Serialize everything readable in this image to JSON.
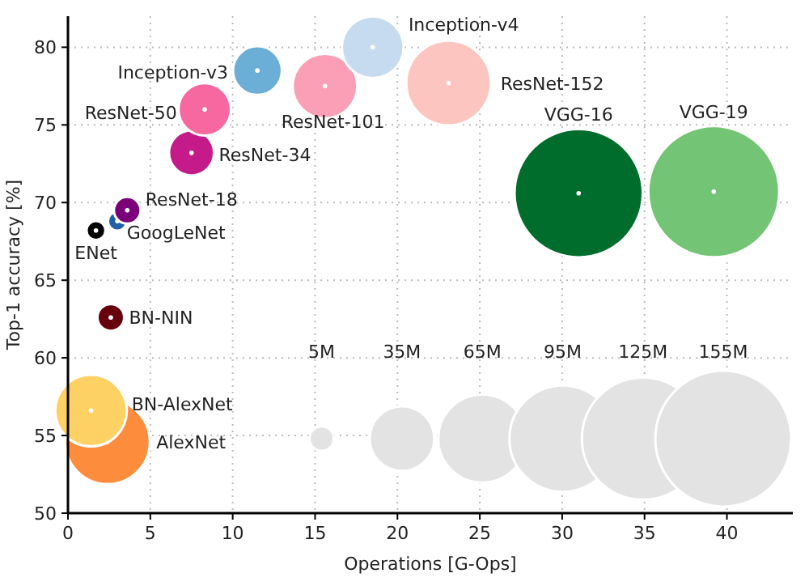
{
  "chart_data": {
    "type": "bubble",
    "xlabel": "Operations [G-Ops]",
    "ylabel": "Top-1 accuracy [%]",
    "xlim": [
      0,
      44
    ],
    "ylim": [
      50,
      82
    ],
    "xticks": [
      0,
      5,
      10,
      15,
      20,
      25,
      30,
      35,
      40
    ],
    "yticks": [
      50,
      55,
      60,
      65,
      70,
      75,
      80
    ],
    "grid": true,
    "size_legend": [
      {
        "value": 5,
        "label": "5M"
      },
      {
        "value": 35,
        "label": "35M"
      },
      {
        "value": 65,
        "label": "65M"
      },
      {
        "value": 95,
        "label": "95M"
      },
      {
        "value": 125,
        "label": "125M"
      },
      {
        "value": 155,
        "label": "155M"
      }
    ],
    "series": [
      {
        "name": "AlexNet",
        "color": "#fd8d3c",
        "x": [
          2.4
        ],
        "values": [
          54.6
        ],
        "sizes": [
          60
        ]
      },
      {
        "name": "BN-AlexNet",
        "color": "#fed165",
        "x": [
          1.4
        ],
        "values": [
          56.6
        ],
        "sizes": [
          43
        ]
      },
      {
        "name": "BN-NIN",
        "color": "#67000d",
        "x": [
          2.6
        ],
        "values": [
          62.6
        ],
        "sizes": [
          6
        ]
      },
      {
        "name": "ENet",
        "color": "#000000",
        "x": [
          1.7
        ],
        "values": [
          68.2
        ],
        "sizes": [
          3
        ]
      },
      {
        "name": "GoogLeNet",
        "color": "#1f5fa8",
        "x": [
          3.0
        ],
        "values": [
          68.8
        ],
        "sizes": [
          3
        ]
      },
      {
        "name": "ResNet-18",
        "color": "#7a0177",
        "x": [
          3.6
        ],
        "values": [
          69.5
        ],
        "sizes": [
          6
        ]
      },
      {
        "name": "ResNet-34",
        "color": "#c51b8a",
        "x": [
          7.5
        ],
        "values": [
          73.2
        ],
        "sizes": [
          17
        ]
      },
      {
        "name": "ResNet-50",
        "color": "#f768a1",
        "x": [
          8.3
        ],
        "values": [
          76.0
        ],
        "sizes": [
          23
        ]
      },
      {
        "name": "Inception-v3",
        "color": "#6baed6",
        "x": [
          11.5
        ],
        "values": [
          78.5
        ],
        "sizes": [
          20
        ]
      },
      {
        "name": "ResNet-101",
        "color": "#fa9fb5",
        "x": [
          15.6
        ],
        "values": [
          77.5
        ],
        "sizes": [
          35
        ]
      },
      {
        "name": "Inception-v4",
        "color": "#c6dbef",
        "x": [
          18.5
        ],
        "values": [
          80.0
        ],
        "sizes": [
          32
        ]
      },
      {
        "name": "ResNet-152",
        "color": "#fcc5c0",
        "x": [
          23.1
        ],
        "values": [
          77.7
        ],
        "sizes": [
          60
        ]
      },
      {
        "name": "VGG-16",
        "color": "#006d2c",
        "x": [
          31.0
        ],
        "values": [
          70.6
        ],
        "sizes": [
          138
        ]
      },
      {
        "name": "VGG-19",
        "color": "#74c476",
        "x": [
          39.2
        ],
        "values": [
          70.7
        ],
        "sizes": [
          144
        ]
      }
    ]
  }
}
